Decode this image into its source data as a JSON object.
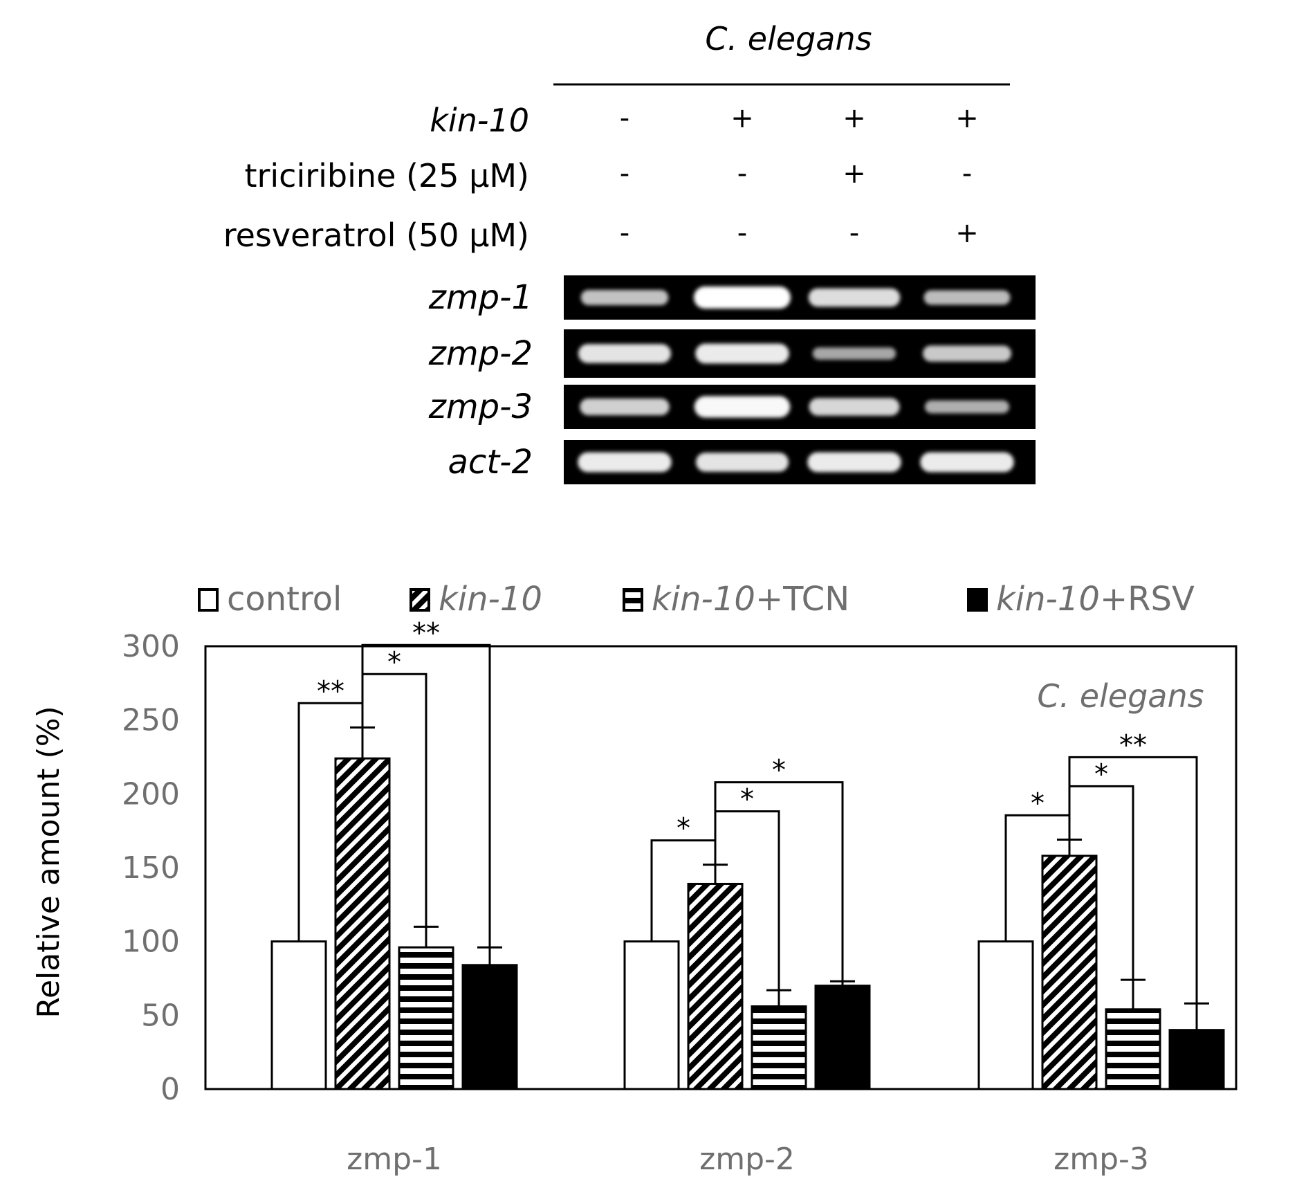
{
  "gel": {
    "header": "C. elegans",
    "conditions": [
      {
        "label": "kin-10",
        "italic": true,
        "signs": [
          "-",
          "+",
          "+",
          "+"
        ]
      },
      {
        "label": "triciribine  (25 μM)",
        "italic": false,
        "signs": [
          "-",
          "-",
          "+",
          "-"
        ]
      },
      {
        "label": "resveratrol  (50 μM)",
        "italic": false,
        "signs": [
          "-",
          "-",
          "-",
          "+"
        ]
      }
    ],
    "rows": [
      {
        "label": "zmp-1",
        "intensities": [
          0.55,
          1.0,
          0.75,
          0.5
        ]
      },
      {
        "label": "zmp-2",
        "intensities": [
          0.8,
          0.85,
          0.35,
          0.6
        ]
      },
      {
        "label": "zmp-3",
        "intensities": [
          0.65,
          0.95,
          0.7,
          0.4
        ]
      },
      {
        "label": "act-2",
        "intensities": [
          0.85,
          0.8,
          0.85,
          0.85
        ]
      }
    ]
  },
  "chart_data": {
    "type": "bar",
    "title": "C. elegans",
    "ylabel": "Relative amount (%)",
    "xlabel": "",
    "ylim": [
      0,
      300
    ],
    "yticks": [
      0,
      50,
      100,
      150,
      200,
      250,
      300
    ],
    "categories": [
      "zmp-1",
      "zmp-2",
      "zmp-3"
    ],
    "series": [
      {
        "legend_italic": "",
        "legend_plain": "control",
        "pattern": "white",
        "values": [
          100,
          100,
          100
        ],
        "errors": [
          0,
          0,
          0
        ]
      },
      {
        "legend_italic": "kin-10",
        "legend_plain": "",
        "pattern": "diagonal",
        "values": [
          224,
          139,
          158
        ],
        "errors": [
          21,
          13,
          11
        ]
      },
      {
        "legend_italic": "kin-10",
        "legend_plain": "+TCN",
        "pattern": "horizontal",
        "values": [
          96,
          56,
          54
        ],
        "errors": [
          14,
          11,
          20
        ]
      },
      {
        "legend_italic": "kin-10",
        "legend_plain": "+RSV",
        "pattern": "black",
        "values": [
          84,
          70,
          40
        ],
        "errors": [
          12,
          3,
          18
        ]
      }
    ],
    "legend_position": "top",
    "significance": [
      {
        "category": 0,
        "from": 0,
        "to": 1,
        "label": "**"
      },
      {
        "category": 0,
        "from": 1,
        "to": 2,
        "label": "*"
      },
      {
        "category": 0,
        "from": 1,
        "to": 3,
        "label": "**"
      },
      {
        "category": 1,
        "from": 0,
        "to": 1,
        "label": "*"
      },
      {
        "category": 1,
        "from": 1,
        "to": 2,
        "label": "*"
      },
      {
        "category": 1,
        "from": 1,
        "to": 3,
        "label": "*"
      },
      {
        "category": 2,
        "from": 0,
        "to": 1,
        "label": "*"
      },
      {
        "category": 2,
        "from": 1,
        "to": 2,
        "label": "*"
      },
      {
        "category": 2,
        "from": 1,
        "to": 3,
        "label": "**"
      }
    ],
    "colors": {
      "bar_outline": "#000000",
      "axis_text": "#6f6f6f"
    }
  }
}
